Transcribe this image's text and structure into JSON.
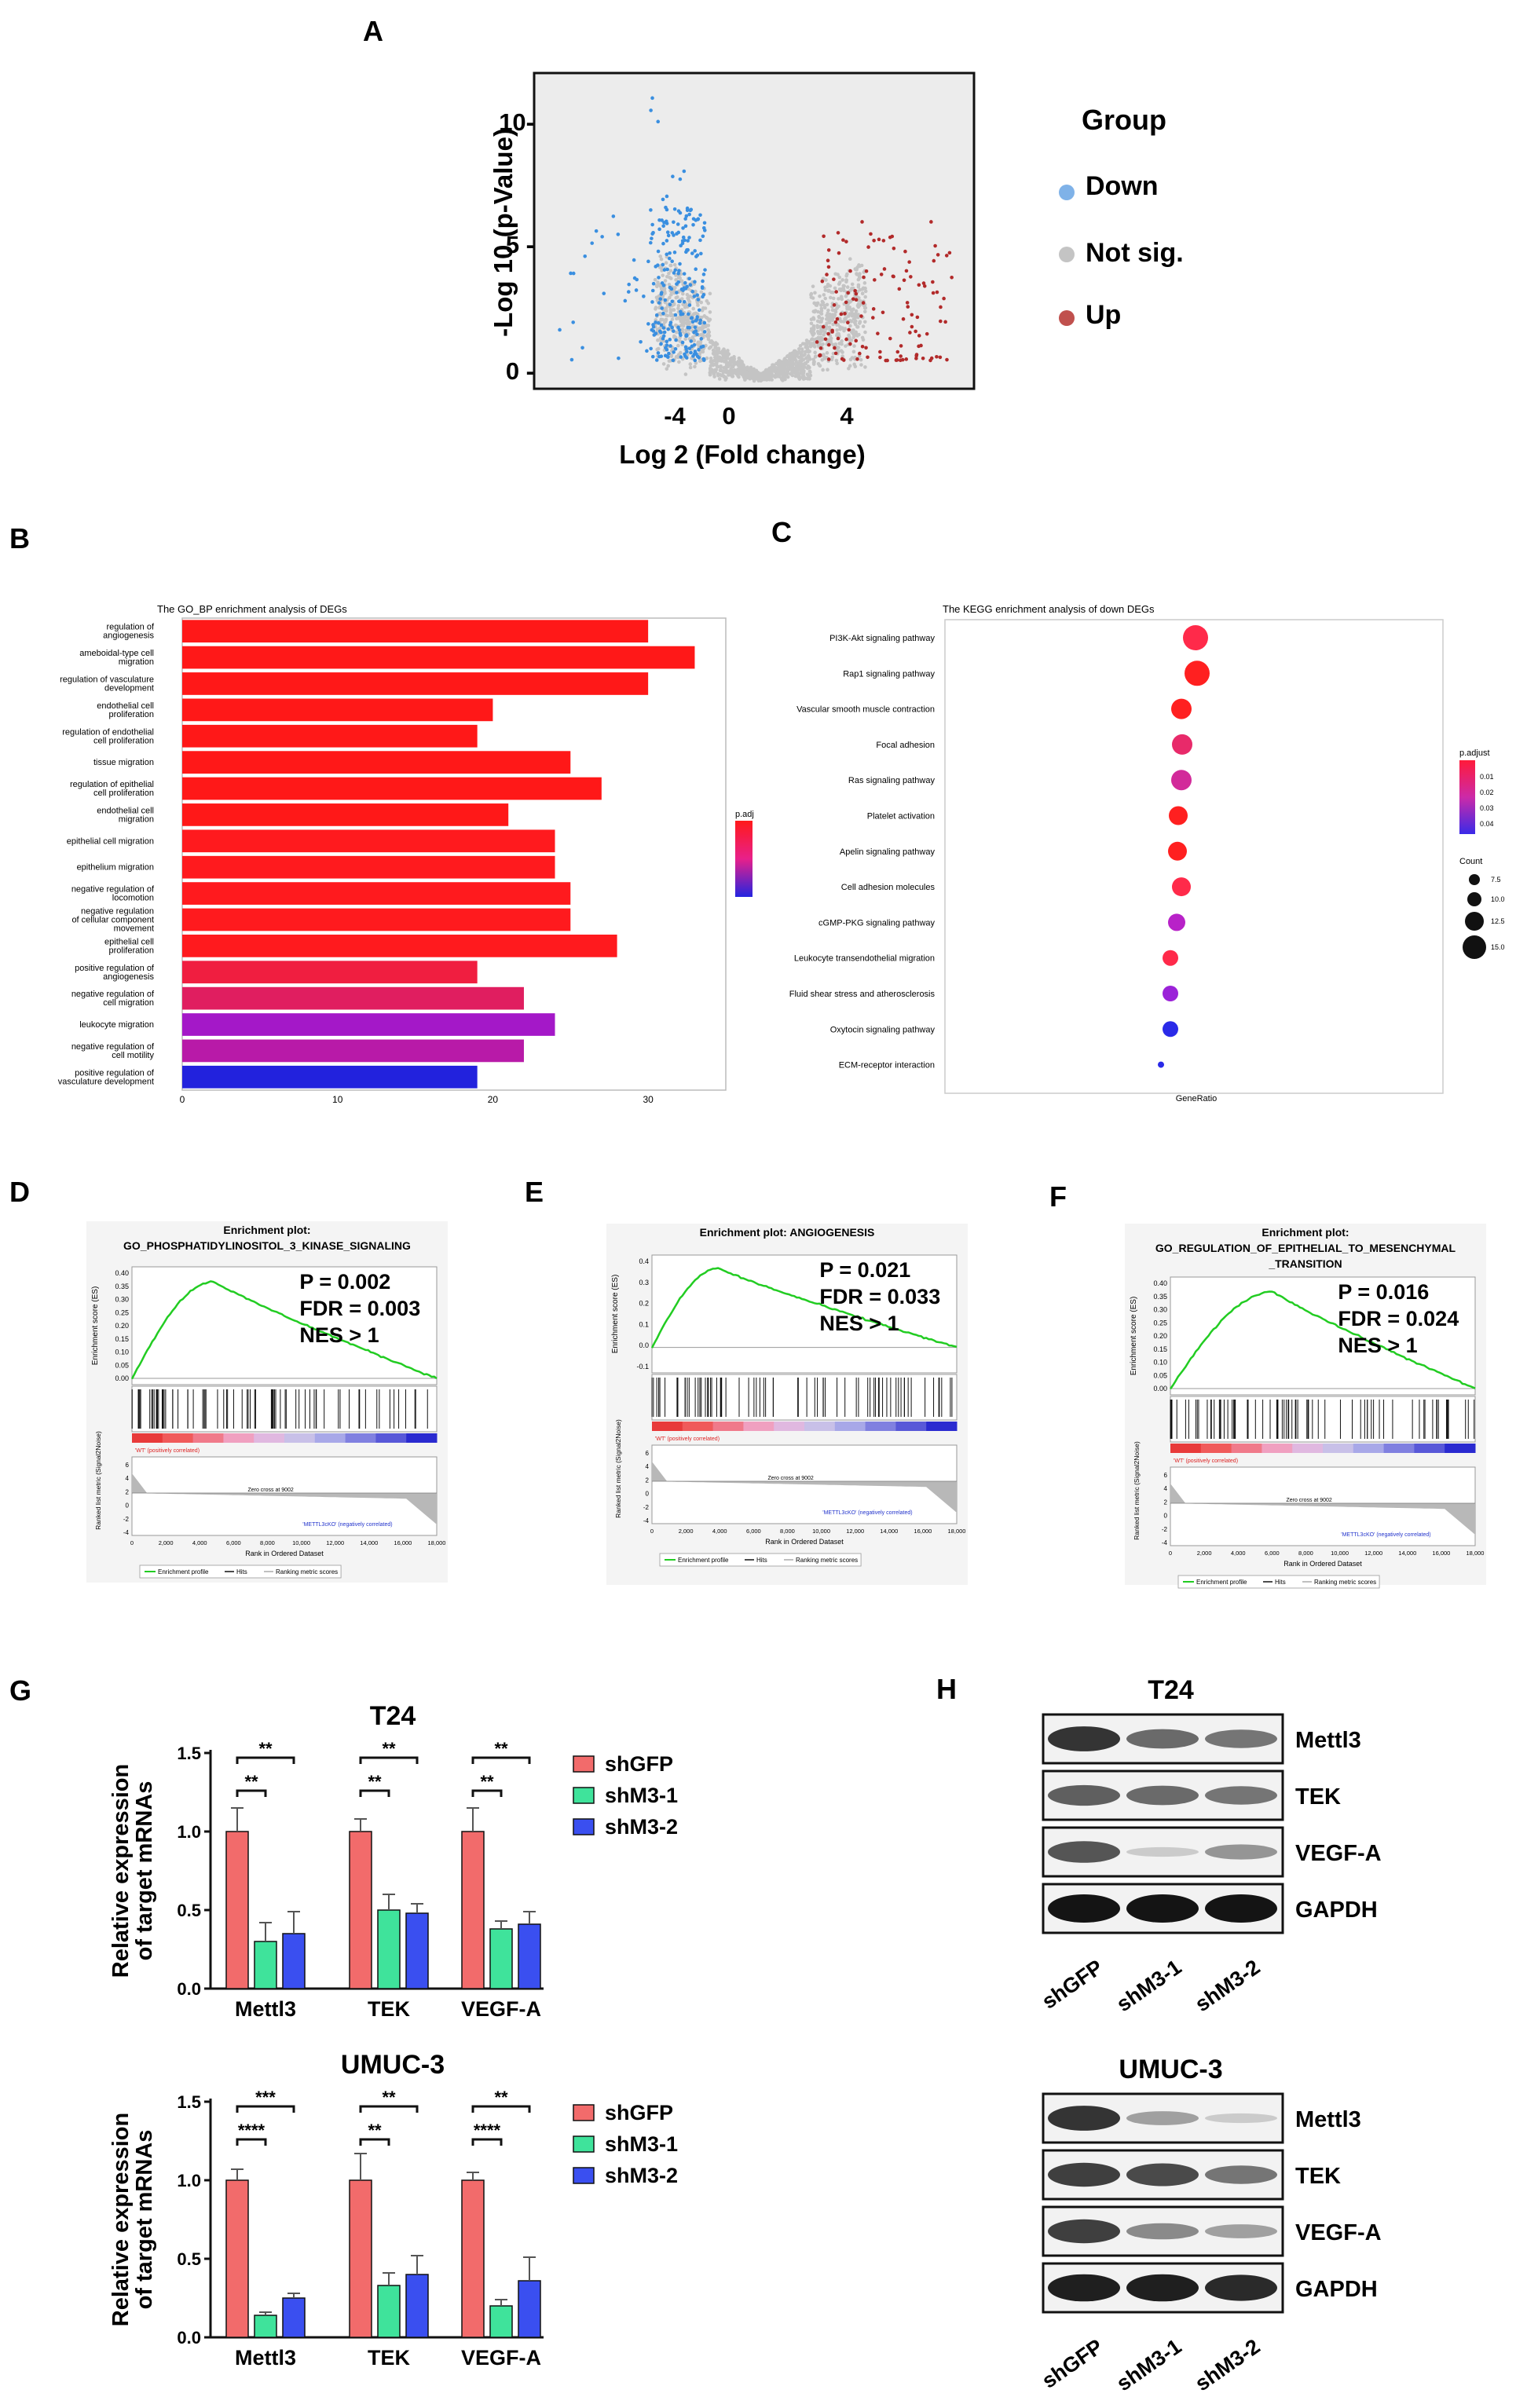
{
  "panels": {
    "A": "A",
    "B": "B",
    "C": "C",
    "D": "D",
    "E": "E",
    "F": "F",
    "G": "G",
    "H": "H"
  },
  "colors": {
    "down": "#3a8fe0",
    "notsig": "#c4c4c4",
    "up": "#b22a2a",
    "shGFP": "#f26b6b",
    "shM3_1": "#3fe39b",
    "shM3_2": "#3a4ff0",
    "gsea_line": "#22cc22"
  },
  "chart_data": [
    {
      "id": "A",
      "type": "scatter",
      "xlabel": "Log 2 (Fold change)",
      "ylabel": "-Log 10 (p-Value)",
      "x_ticks": [
        "-4",
        "0",
        "4"
      ],
      "y_ticks": [
        "0 -",
        "5 -",
        "10-"
      ],
      "xlim": [
        -9,
        8.5
      ],
      "ylim": [
        -0.3,
        12
      ],
      "legend_title": "Group",
      "legend": [
        "Down",
        "Not sig.",
        "Up"
      ]
    },
    {
      "id": "B",
      "type": "bar",
      "title": "The GO_BP enrichment analysis of DEGs",
      "categories": [
        "regulation of\nangiogenesis",
        "ameboidal-type cell\nmigration",
        "regulation of vasculature\ndevelopment",
        "endothelial cell\nproliferation",
        "regulation of endothelial\ncell proliferation",
        "tissue migration",
        "regulation of epithelial\ncell proliferation",
        "endothelial cell\nmigration",
        "epithelial cell migration",
        "epithelium migration",
        "negative regulation of\nlocomotion",
        "negative regulation\nof cellular component\nmovement",
        "epithelial cell\nproliferation",
        "positive regulation of\nangiogenesis",
        "negative regulation of\ncell migration",
        "leukocyte migration",
        "negative regulation of\ncell motility",
        "positive regulation of\nvasculature development"
      ],
      "values": [
        30,
        33,
        30,
        20,
        19,
        25,
        27,
        21,
        24,
        24,
        25,
        25,
        28,
        19,
        22,
        24,
        22,
        19
      ],
      "bar_colors": [
        "#ff1818",
        "#ff1818",
        "#ff1818",
        "#ff1818",
        "#ff1818",
        "#ff1818",
        "#ff1818",
        "#ff1818",
        "#ff1a1e",
        "#ff1a1e",
        "#ff1a1e",
        "#ff1a1e",
        "#ff1a1e",
        "#f01e40",
        "#e01e60",
        "#a418c8",
        "#b81aa8",
        "#2222dd"
      ],
      "x_ticks": [
        "0",
        "10",
        "20",
        "30"
      ],
      "xlim": [
        0,
        35
      ],
      "legend_title": "p.adj"
    },
    {
      "id": "C",
      "type": "scatter",
      "title": "The KEGG enrichment analysis of down DEGs",
      "categories": [
        "PI3K-Akt signaling pathway",
        "Rap1 signaling pathway",
        "Vascular smooth muscle contraction",
        "Focal adhesion",
        "Ras signaling pathway",
        "Platelet activation",
        "Apelin signaling pathway",
        "Cell adhesion molecules",
        "cGMP-PKG signaling pathway",
        "Leukocyte transendothelial migration",
        "Fluid shear stress and atherosclerosis",
        "Oxytocin signaling pathway",
        "ECM-receptor interaction"
      ],
      "counts": [
        15,
        15,
        12,
        12,
        12,
        11,
        11,
        11,
        10,
        9,
        9,
        9,
        3
      ],
      "dot_colors": [
        "#ff2a4a",
        "#ff2020",
        "#ff2020",
        "#e82a6a",
        "#d22a9a",
        "#ff2020",
        "#ff2020",
        "#ff2a4a",
        "#b822c8",
        "#ff2a4a",
        "#9b22d8",
        "#2a2ae8",
        "#2a2ae8"
      ],
      "xlabel": "GeneRatio",
      "color_legend_title": "p.adjust",
      "color_ticks": [
        "0.01",
        "0.02",
        "0.03",
        "0.04"
      ],
      "size_legend_title": "Count",
      "size_ticks": [
        "7.5",
        "10.0",
        "12.5",
        "15.0"
      ]
    },
    {
      "id": "D",
      "type": "line",
      "title": "Enrichment plot:\nGO_PHOSPHATIDYLINOSITOL_3_KINASE_SIGNALING",
      "stats": [
        "P = 0.002",
        "FDR = 0.003",
        "NES > 1"
      ],
      "y_ticks": [
        "0.40",
        "0.35",
        "0.30",
        "0.25",
        "0.20",
        "0.15",
        "0.10",
        "0.05",
        "0.00"
      ],
      "x_ticks": [
        "0",
        "2,000",
        "4,000",
        "6,000",
        "8,000",
        "10,000",
        "12,000",
        "14,000",
        "16,000",
        "18,000"
      ],
      "ylabel": "Enrichment score (ES)",
      "ylabel2": "Ranked list metric (Signal2Noise)",
      "xlabel": "Rank in Ordered Dataset",
      "pos_label": "'WT' (positively correlated)",
      "neg_label": "'METTL3cKO' (negatively correlated)",
      "zero_label": "Zero cross at 9002",
      "rank_ticks": [
        "6",
        "4",
        "2",
        "0",
        "-2",
        "-4"
      ],
      "legend": [
        "Enrichment profile",
        "Hits",
        "Ranking metric scores"
      ]
    },
    {
      "id": "E",
      "type": "line",
      "title": "Enrichment plot: ANGIOGENESIS",
      "stats": [
        "P = 0.021",
        "FDR = 0.033",
        "NES > 1"
      ],
      "y_ticks": [
        "0.4",
        "0.3",
        "0.2",
        "0.1",
        "0.0",
        "-0.1"
      ],
      "x_ticks": [
        "0",
        "2,000",
        "4,000",
        "6,000",
        "8,000",
        "10,000",
        "12,000",
        "14,000",
        "16,000",
        "18,000"
      ],
      "ylabel": "Enrichment score (ES)",
      "ylabel2": "Ranked list metric (Signal2Noise)",
      "xlabel": "Rank in Ordered Dataset",
      "pos_label": "'WT' (positively correlated)",
      "neg_label": "'METTL3cKO' (negatively correlated)",
      "zero_label": "Zero cross at 9002",
      "rank_ticks": [
        "6",
        "4",
        "2",
        "0",
        "-2",
        "-4"
      ],
      "legend": [
        "Enrichment profile",
        "Hits",
        "Ranking metric scores"
      ]
    },
    {
      "id": "F",
      "type": "line",
      "title": "Enrichment plot:\nGO_REGULATION_OF_EPITHELIAL_TO_MESENCHYMAL\n_TRANSITION",
      "stats": [
        "P = 0.016",
        "FDR = 0.024",
        "NES > 1"
      ],
      "y_ticks": [
        "0.40",
        "0.35",
        "0.30",
        "0.25",
        "0.20",
        "0.15",
        "0.10",
        "0.05",
        "0.00"
      ],
      "x_ticks": [
        "0",
        "2,000",
        "4,000",
        "6,000",
        "8,000",
        "10,000",
        "12,000",
        "14,000",
        "16,000",
        "18,000"
      ],
      "ylabel": "Enrichment score (ES)",
      "ylabel2": "Ranked list metric (Signal2Noise)",
      "xlabel": "Rank in Ordered Dataset",
      "pos_label": "'WT' (positively correlated)",
      "neg_label": "'METTL3cKO' (negatively correlated)",
      "zero_label": "Zero cross at 9002",
      "rank_ticks": [
        "6",
        "4",
        "2",
        "0",
        "-2",
        "-4"
      ],
      "legend": [
        "Enrichment profile",
        "Hits",
        "Ranking metric scores"
      ]
    },
    {
      "id": "G1",
      "type": "bar",
      "title": "T24",
      "categories": [
        "Mettl3",
        "TEK",
        "VEGF-A"
      ],
      "series": [
        {
          "name": "shGFP",
          "values": [
            1.0,
            1.0,
            1.0
          ],
          "err": [
            0.15,
            0.08,
            0.15
          ]
        },
        {
          "name": "shM3-1",
          "values": [
            0.3,
            0.5,
            0.38
          ],
          "err": [
            0.12,
            0.1,
            0.05
          ]
        },
        {
          "name": "shM3-2",
          "values": [
            0.35,
            0.48,
            0.41
          ],
          "err": [
            0.14,
            0.06,
            0.08
          ]
        }
      ],
      "y_ticks": [
        "0.0",
        "0.5",
        "1.0",
        "1.5"
      ],
      "ylim": [
        0,
        1.5
      ],
      "ylabel": "Relative expression\nof target mRNAs",
      "sig": [
        [
          "**",
          "**"
        ],
        [
          "**",
          "**"
        ],
        [
          "**",
          "**"
        ]
      ]
    },
    {
      "id": "G2",
      "type": "bar",
      "title": "UMUC-3",
      "categories": [
        "Mettl3",
        "TEK",
        "VEGF-A"
      ],
      "series": [
        {
          "name": "shGFP",
          "values": [
            1.0,
            1.0,
            1.0
          ],
          "err": [
            0.07,
            0.17,
            0.05
          ]
        },
        {
          "name": "shM3-1",
          "values": [
            0.14,
            0.33,
            0.2
          ],
          "err": [
            0.02,
            0.08,
            0.04
          ]
        },
        {
          "name": "shM3-2",
          "values": [
            0.25,
            0.4,
            0.36
          ],
          "err": [
            0.03,
            0.12,
            0.15
          ]
        }
      ],
      "y_ticks": [
        "0.0",
        "0.5",
        "1.0",
        "1.5"
      ],
      "ylim": [
        0,
        1.5
      ],
      "ylabel": "Relative expression\nof target mRNAs",
      "sig": [
        [
          "****",
          "***"
        ],
        [
          "**",
          "**"
        ],
        [
          "****",
          "**"
        ]
      ]
    }
  ],
  "western": [
    {
      "title": "T24",
      "bands": [
        "Mettl3",
        "TEK",
        "VEGF-A",
        "GAPDH"
      ],
      "lanes": [
        "shGFP",
        "shM3-1",
        "shM3-2"
      ]
    },
    {
      "title": "UMUC-3",
      "bands": [
        "Mettl3",
        "TEK",
        "VEGF-A",
        "GAPDH"
      ],
      "lanes": [
        "shGFP",
        "shM3-1",
        "shM3-2"
      ]
    }
  ]
}
